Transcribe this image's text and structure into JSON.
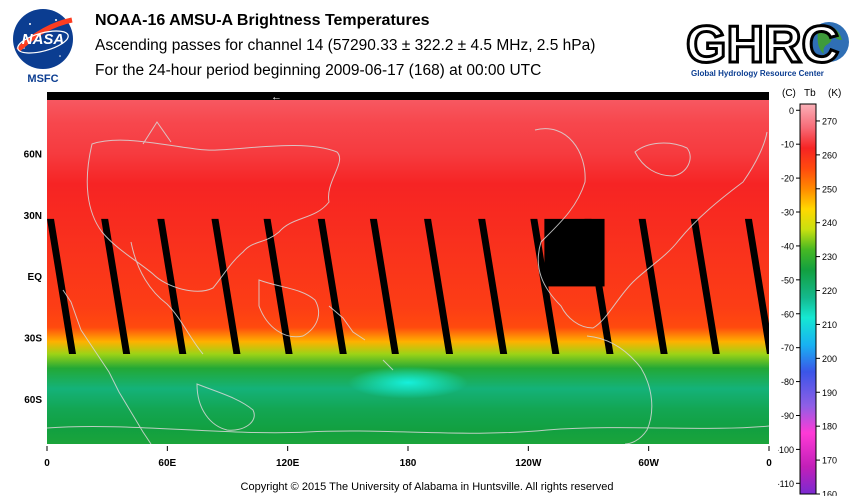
{
  "header": {
    "title": "NOAA-16 AMSU-A Brightness Temperatures",
    "subtitle": "Ascending passes for channel 14 (57290.33 ± 322.2 ± 4.5 MHz, 2.5 hPa)",
    "period": "For the 24-hour period beginning 2009-06-17 (168) at 00:00 UTC"
  },
  "logos": {
    "nasa": {
      "text": "NASA",
      "caption": "MSFC"
    },
    "ghrc": {
      "text": "GHRC",
      "caption": "Global Hydrology Resource Center"
    }
  },
  "footer": {
    "copyright": "Copyright © 2015 The University of Alabama in Huntsville.  All rights reserved"
  },
  "chart_data": {
    "type": "heatmap",
    "x": {
      "ticks": [
        "0",
        "60E",
        "120E",
        "180",
        "120W",
        "60W",
        "0"
      ],
      "tick_values": [
        0,
        60,
        120,
        180,
        240,
        300,
        360
      ],
      "range": [
        0,
        360
      ]
    },
    "y": {
      "ticks": [
        "60N",
        "30N",
        "EQ",
        "30S",
        "60S"
      ],
      "tick_values": [
        60,
        30,
        0,
        -30,
        -60
      ],
      "range": [
        -82,
        90
      ]
    },
    "direction_marker": "←",
    "zonal_profile": {
      "lat": [
        90,
        75,
        60,
        45,
        30,
        15,
        0,
        -15,
        -25,
        -32,
        -38,
        -45,
        -55,
        -65,
        -75,
        -82
      ],
      "tb_k": [
        267,
        265,
        264,
        262,
        261,
        260,
        259,
        258,
        256,
        247,
        236,
        228,
        220,
        224,
        226,
        227
      ]
    },
    "warm_spot": {
      "lon": 180,
      "lat": -52,
      "tb_k": 212
    },
    "no_data_swath_starts_lon": [
      0,
      27,
      55,
      82,
      108,
      135,
      161,
      188,
      215,
      241,
      268,
      295,
      321,
      348
    ],
    "no_data_box": {
      "lon": [
        248,
        278
      ],
      "lat": [
        -5,
        28
      ]
    },
    "colorbar": {
      "units": [
        "(C)",
        "Tb",
        "(K)"
      ],
      "celsius_ticks": [
        0,
        -10,
        -20,
        -30,
        -40,
        -50,
        -60,
        -70,
        -80,
        -90,
        -100,
        -110
      ],
      "kelvin_ticks": [
        270,
        260,
        250,
        240,
        230,
        220,
        210,
        200,
        190,
        180,
        170,
        160
      ],
      "range_k": [
        160,
        275
      ],
      "colors": [
        {
          "k": 160,
          "c": "#7a2ad0"
        },
        {
          "k": 168,
          "c": "#c21fb8"
        },
        {
          "k": 178,
          "c": "#ff3ad6"
        },
        {
          "k": 186,
          "c": "#8f5fe6"
        },
        {
          "k": 196,
          "c": "#3b55e8"
        },
        {
          "k": 204,
          "c": "#18b2f2"
        },
        {
          "k": 212,
          "c": "#16e8d2"
        },
        {
          "k": 218,
          "c": "#14b88c"
        },
        {
          "k": 226,
          "c": "#12a040"
        },
        {
          "k": 232,
          "c": "#46b823"
        },
        {
          "k": 238,
          "c": "#c8e010"
        },
        {
          "k": 244,
          "c": "#ffd800"
        },
        {
          "k": 250,
          "c": "#ff8a00"
        },
        {
          "k": 256,
          "c": "#ff4a0e"
        },
        {
          "k": 262,
          "c": "#f62424"
        },
        {
          "k": 268,
          "c": "#f76a76"
        },
        {
          "k": 275,
          "c": "#fab0b8"
        }
      ]
    }
  }
}
